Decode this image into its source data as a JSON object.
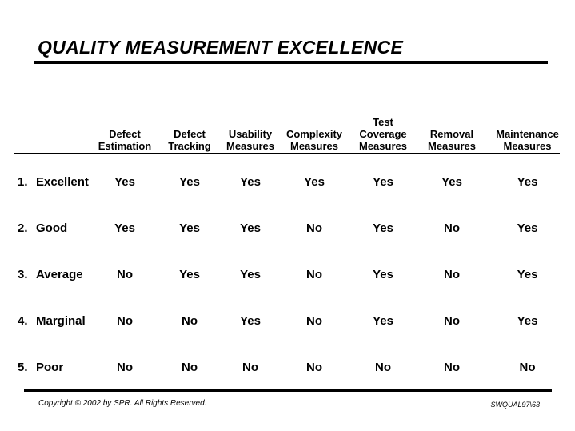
{
  "slide": {
    "title": "QUALITY MEASUREMENT EXCELLENCE",
    "footer": {
      "copyright": "Copyright © 2002 by SPR.  All Rights Reserved.",
      "code": "SWQUAL97\\63"
    }
  },
  "table": {
    "columns": [
      "Defect\nEstimation",
      "Defect\nTracking",
      "Usability\nMeasures",
      "Complexity\nMeasures",
      "Test\nCoverage\nMeasures",
      "Removal\nMeasures",
      "Maintenance\nMeasures"
    ],
    "rows": [
      {
        "num": "1.",
        "label": "Excellent",
        "values": [
          "Yes",
          "Yes",
          "Yes",
          "Yes",
          "Yes",
          "Yes",
          "Yes"
        ]
      },
      {
        "num": "2.",
        "label": "Good",
        "values": [
          "Yes",
          "Yes",
          "Yes",
          "No",
          "Yes",
          "No",
          "Yes"
        ]
      },
      {
        "num": "3.",
        "label": "Average",
        "values": [
          "No",
          "Yes",
          "Yes",
          "No",
          "Yes",
          "No",
          "Yes"
        ]
      },
      {
        "num": "4.",
        "label": "Marginal",
        "values": [
          "No",
          "No",
          "Yes",
          "No",
          "Yes",
          "No",
          "Yes"
        ]
      },
      {
        "num": "5.",
        "label": "Poor",
        "values": [
          "No",
          "No",
          "No",
          "No",
          "No",
          "No",
          "No"
        ]
      }
    ]
  }
}
